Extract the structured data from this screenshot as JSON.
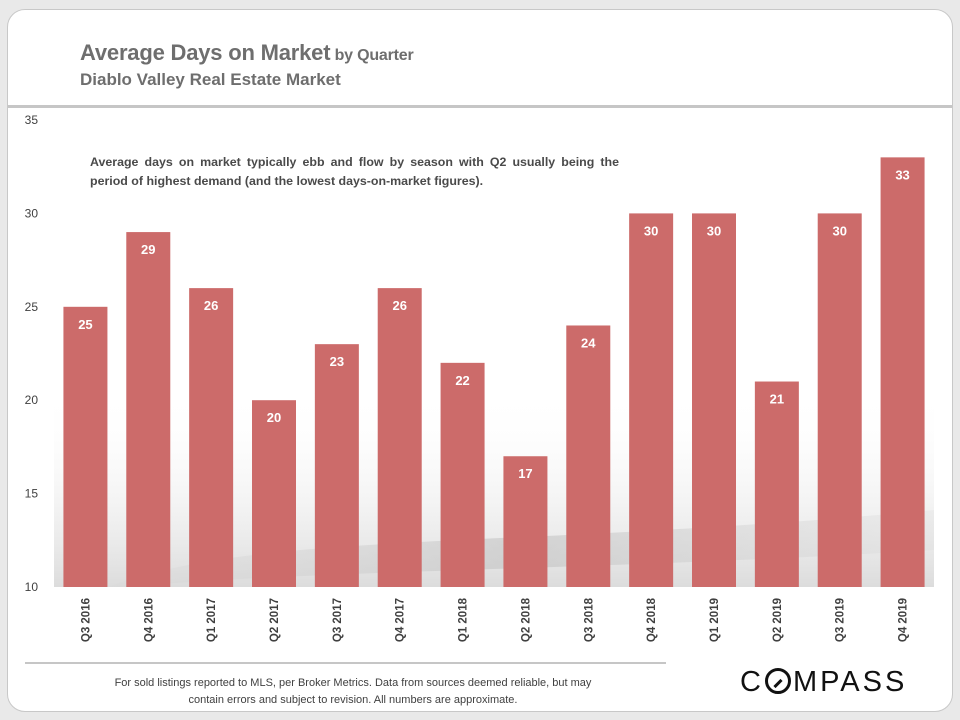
{
  "title": {
    "main": "Average Days on Market",
    "suffix": " by Quarter",
    "subtitle": "Diablo Valley Real Estate Market"
  },
  "annotation": "Average days on market typically ebb and flow by season with Q2 usually being the period of highest demand (and the lowest days-on-market figures).",
  "footer": {
    "line1": "For sold listings reported to MLS, per Broker Metrics. Data from sources deemed reliable, but may",
    "line2": "contain errors and subject to revision. All numbers are approximate."
  },
  "logo": {
    "before": "C",
    "after": "MPASS"
  },
  "colors": {
    "bar": "#cc6b6a",
    "text": "#6e6e6e"
  },
  "chart_data": {
    "type": "bar",
    "categories": [
      "Q3 2016",
      "Q4 2016",
      "Q1 2017",
      "Q2 2017",
      "Q3 2017",
      "Q4 2017",
      "Q1 2018",
      "Q2 2018",
      "Q3 2018",
      "Q4 2018",
      "Q1 2019",
      "Q2 2019",
      "Q3 2019",
      "Q4 2019"
    ],
    "values": [
      25,
      29,
      26,
      20,
      23,
      26,
      22,
      17,
      24,
      30,
      30,
      21,
      30,
      33
    ],
    "ylim": [
      10,
      35
    ],
    "yticks": [
      10,
      15,
      20,
      25,
      30,
      35
    ],
    "grid": false,
    "data_labels": true
  }
}
